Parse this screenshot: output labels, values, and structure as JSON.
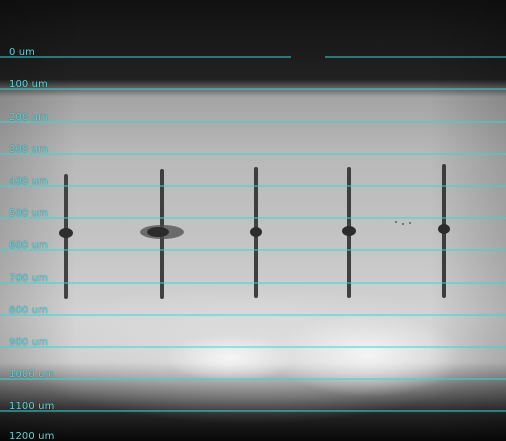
{
  "image": {
    "alt": "microscope camera view with five vertical dark filaments against a bright background",
    "overlay_color": "#35d6dc"
  },
  "scale": {
    "labels": [
      {
        "text": "0 um"
      },
      {
        "text": "100 um"
      },
      {
        "text": "200 um"
      },
      {
        "text": "300 um"
      },
      {
        "text": "400 um"
      },
      {
        "text": "500 um"
      },
      {
        "text": "600 um"
      },
      {
        "text": "700 um"
      },
      {
        "text": "800 um"
      },
      {
        "text": "900 um"
      },
      {
        "text": "1000 um"
      },
      {
        "text": "1100 um"
      },
      {
        "text": "1200 um"
      }
    ]
  },
  "samples": [
    {
      "name": "filament-1"
    },
    {
      "name": "filament-2"
    },
    {
      "name": "filament-3"
    },
    {
      "name": "filament-4"
    },
    {
      "name": "filament-5"
    }
  ]
}
